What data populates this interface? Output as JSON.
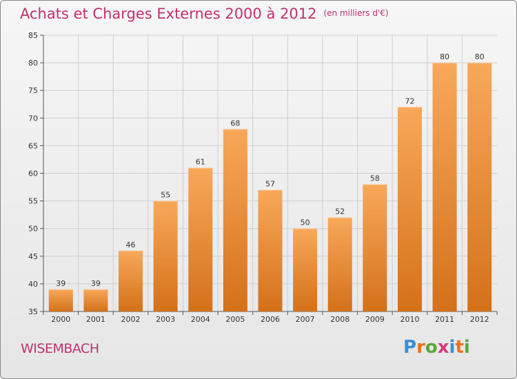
{
  "header": {
    "title": "Achats et Charges Externes 2000 à 2012",
    "subtitle": "(en milliers d'€)"
  },
  "footer": {
    "commune": "WISEMBACH",
    "logo_text": "Proxiti"
  },
  "colors": {
    "bar_top": "#f8a85a",
    "bar_bottom": "#d4711a",
    "title": "#c0306e",
    "axis": "#555555",
    "grid": "#cfcfcf"
  },
  "chart_data": {
    "type": "bar",
    "title": "Achats et Charges Externes 2000 à 2012",
    "subtitle": "(en milliers d'€)",
    "categories": [
      "2000",
      "2001",
      "2002",
      "2003",
      "2004",
      "2005",
      "2006",
      "2007",
      "2008",
      "2009",
      "2010",
      "2011",
      "2012"
    ],
    "values": [
      39,
      39,
      46,
      55,
      61,
      68,
      57,
      50,
      52,
      58,
      72,
      80,
      80
    ],
    "ylim": [
      35,
      85
    ],
    "yticks": [
      35,
      40,
      45,
      50,
      55,
      60,
      65,
      70,
      75,
      80,
      85
    ],
    "grid": true,
    "legend": "none"
  }
}
